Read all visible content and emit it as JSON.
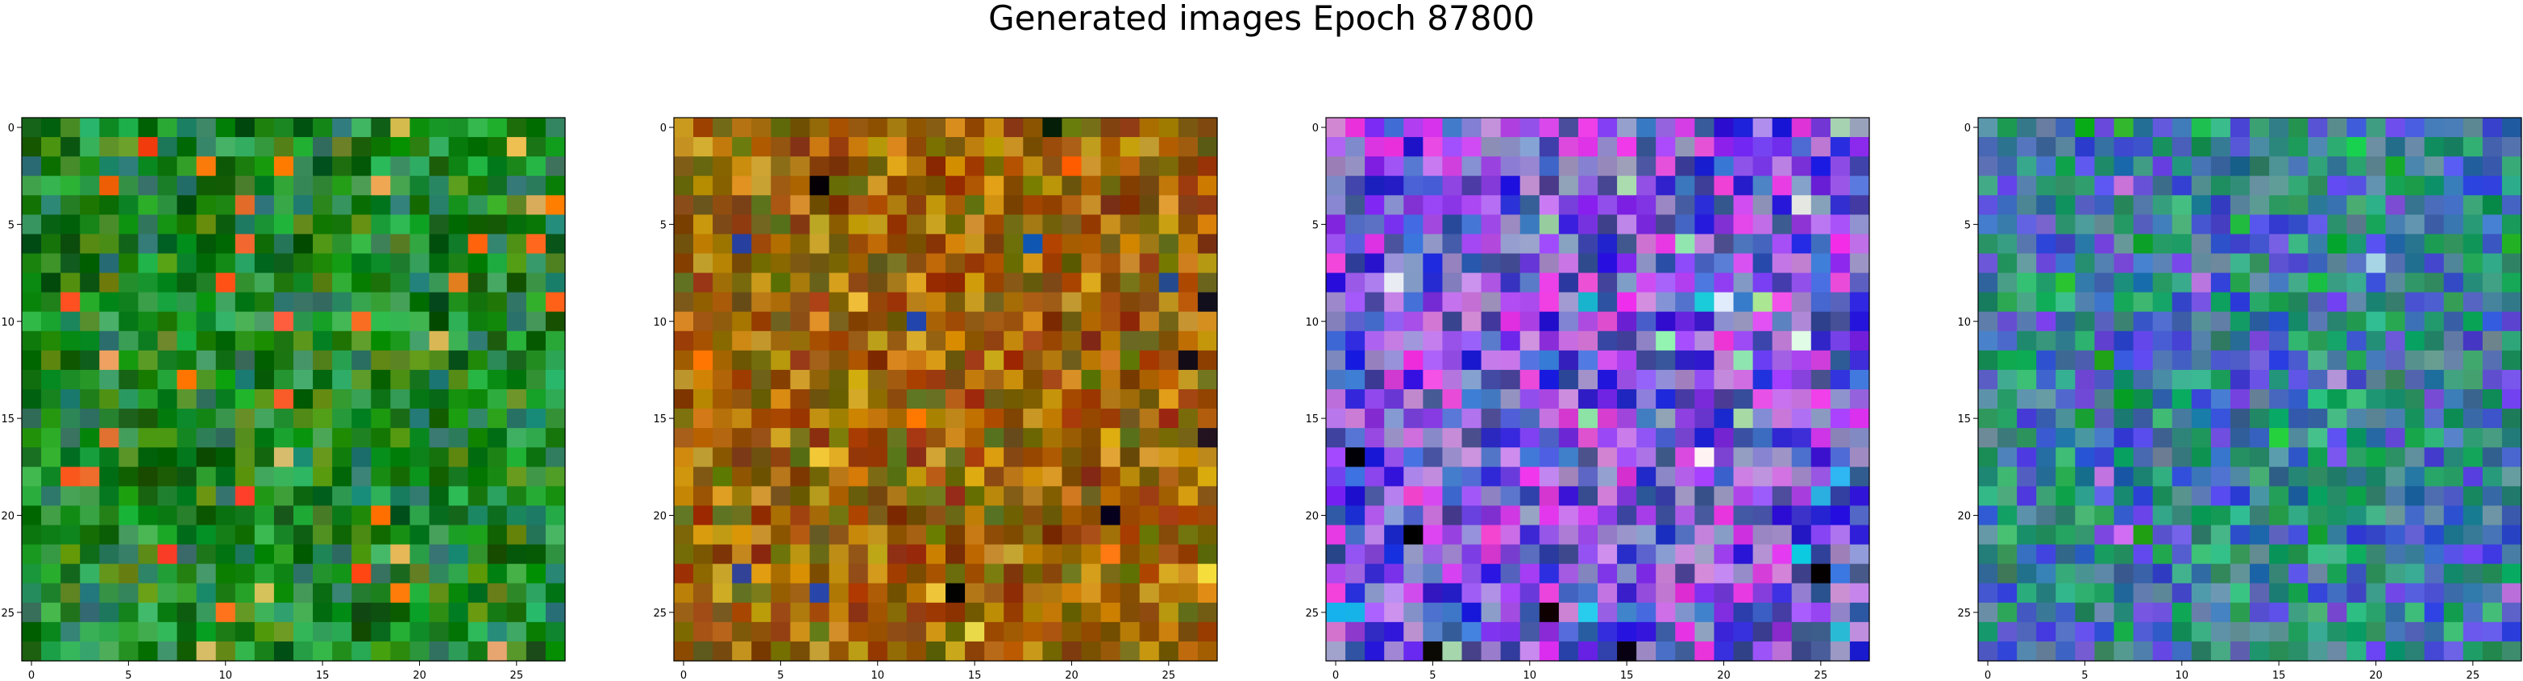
{
  "figure": {
    "title": "Generated images Epoch 87800"
  },
  "chart_data": [
    {
      "type": "heatmap",
      "title": "",
      "xlabel": "",
      "ylabel": "",
      "grid": false,
      "size": [
        28,
        28
      ],
      "xlim": [
        -0.5,
        27.5
      ],
      "ylim": [
        27.5,
        -0.5
      ],
      "x_ticks": [
        0,
        5,
        10,
        15,
        20,
        25
      ],
      "y_ticks": [
        0,
        5,
        10,
        15,
        20,
        25
      ],
      "palette": {
        "base": "#0f7f12",
        "tones": [
          "#0f7f12",
          "#0b6a0e",
          "#1a8f20",
          "#075a0a",
          "#2aa33a",
          "#3aa85a",
          "#5a8e1a",
          "#2a7a6a"
        ],
        "highlights": [
          "#ff6a10",
          "#ff4a20",
          "#e8b060",
          "#f07030"
        ]
      }
    },
    {
      "type": "heatmap",
      "title": "",
      "xlabel": "",
      "ylabel": "",
      "grid": false,
      "size": [
        28,
        28
      ],
      "xlim": [
        -0.5,
        27.5
      ],
      "ylim": [
        27.5,
        -0.5
      ],
      "x_ticks": [
        0,
        5,
        10,
        15,
        20,
        25
      ],
      "y_ticks": [
        0,
        5,
        10,
        15,
        20,
        25
      ],
      "palette": {
        "base": "#b06e08",
        "tones": [
          "#b06e08",
          "#9a5a05",
          "#c88a10",
          "#7a5a08",
          "#a04a05",
          "#6a6a10",
          "#d09a20",
          "#8a3a05"
        ],
        "highlights": [
          "#ff6a00",
          "#f0d040",
          "#101010",
          "#2050a0"
        ]
      }
    },
    {
      "type": "heatmap",
      "title": "",
      "xlabel": "",
      "ylabel": "",
      "grid": false,
      "size": [
        28,
        28
      ],
      "xlim": [
        -0.5,
        27.5
      ],
      "ylim": [
        27.5,
        -0.5
      ],
      "x_ticks": [
        0,
        5,
        10,
        15,
        20,
        25
      ],
      "y_ticks": [
        0,
        5,
        10,
        15,
        20,
        25
      ],
      "palette": {
        "base": "#7a30e0",
        "tones": [
          "#7a30e0",
          "#2a20d0",
          "#a050f0",
          "#c080e0",
          "#4a70d0",
          "#e040e0",
          "#9090c8",
          "#3a4a9a"
        ],
        "highlights": [
          "#000000",
          "#f0f0f0",
          "#20c0e0",
          "#a0e0a0"
        ]
      }
    },
    {
      "type": "heatmap",
      "title": "",
      "xlabel": "",
      "ylabel": "",
      "grid": false,
      "size": [
        28,
        28
      ],
      "xlim": [
        -0.5,
        27.5
      ],
      "ylim": [
        27.5,
        -0.5
      ],
      "x_ticks": [
        0,
        5,
        10,
        15,
        20,
        25
      ],
      "y_ticks": [
        0,
        5,
        10,
        15,
        20,
        25
      ],
      "palette": {
        "base": "#3a4ad0",
        "tones": [
          "#3a4ad0",
          "#2a8a6a",
          "#4a70c0",
          "#1a9a5a",
          "#6a50e0",
          "#2a6a9a",
          "#3ab080",
          "#5a8aa0"
        ],
        "highlights": [
          "#c080e0",
          "#20c040",
          "#a0d0f0",
          "#10a020"
        ]
      }
    }
  ]
}
